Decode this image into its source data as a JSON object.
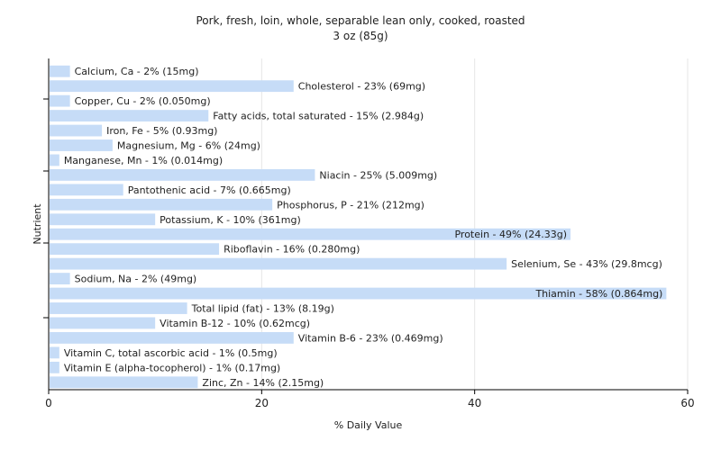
{
  "chart_data": {
    "type": "bar",
    "orientation": "horizontal",
    "title": "Pork, fresh, loin, whole, separable lean only, cooked, roasted",
    "subtitle": "3 oz (85g)",
    "xlabel": "% Daily Value",
    "ylabel": "Nutrient",
    "xlim": [
      0,
      60
    ],
    "xticks": [
      0,
      20,
      40,
      60
    ],
    "grid": true,
    "bar_color": "#c6dcf7",
    "categories": [
      "Calcium, Ca",
      "Cholesterol",
      "Copper, Cu",
      "Fatty acids, total saturated",
      "Iron, Fe",
      "Magnesium, Mg",
      "Manganese, Mn",
      "Niacin",
      "Pantothenic acid",
      "Phosphorus, P",
      "Potassium, K",
      "Protein",
      "Riboflavin",
      "Selenium, Se",
      "Sodium, Na",
      "Thiamin",
      "Total lipid (fat)",
      "Vitamin B-12",
      "Vitamin B-6",
      "Vitamin C, total ascorbic acid",
      "Vitamin E (alpha-tocopherol)",
      "Zinc, Zn"
    ],
    "values": [
      2,
      23,
      2,
      15,
      5,
      6,
      1,
      25,
      7,
      21,
      10,
      49,
      16,
      43,
      2,
      58,
      13,
      10,
      23,
      1,
      1,
      14
    ],
    "labels": [
      "Calcium, Ca - 2% (15mg)",
      "Cholesterol - 23% (69mg)",
      "Copper, Cu - 2% (0.050mg)",
      "Fatty acids, total saturated - 15% (2.984g)",
      "Iron, Fe - 5% (0.93mg)",
      "Magnesium, Mg - 6% (24mg)",
      "Manganese, Mn - 1% (0.014mg)",
      "Niacin - 25% (5.009mg)",
      "Pantothenic acid - 7% (0.665mg)",
      "Phosphorus, P - 21% (212mg)",
      "Potassium, K - 10% (361mg)",
      "Protein - 49% (24.33g)",
      "Riboflavin - 16% (0.280mg)",
      "Selenium, Se - 43% (29.8mcg)",
      "Sodium, Na - 2% (49mg)",
      "Thiamin - 58% (0.864mg)",
      "Total lipid (fat) - 13% (8.19g)",
      "Vitamin B-12 - 10% (0.62mcg)",
      "Vitamin B-6 - 23% (0.469mg)",
      "Vitamin C, total ascorbic acid - 1% (0.5mg)",
      "Vitamin E (alpha-tocopherol) - 1% (0.17mg)",
      "Zinc, Zn - 14% (2.15mg)"
    ]
  }
}
